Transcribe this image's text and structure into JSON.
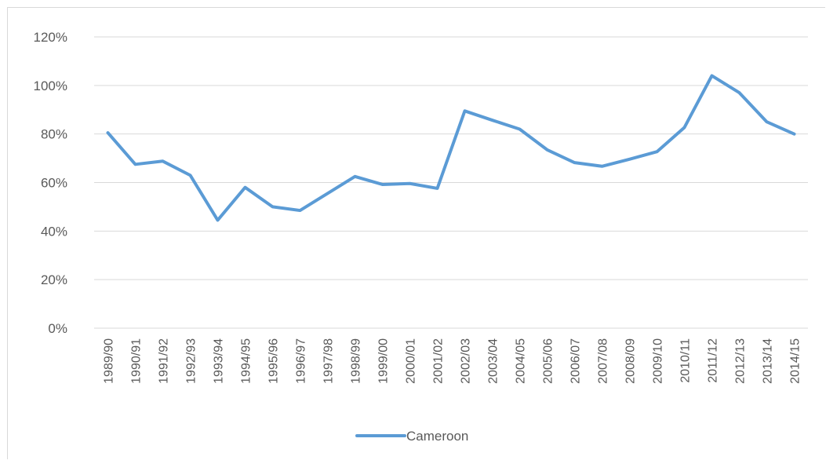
{
  "chart_data": {
    "type": "line",
    "title": "",
    "xlabel": "",
    "ylabel": "",
    "ylim": [
      0,
      120
    ],
    "y_tick_labels": [
      "0%",
      "20%",
      "40%",
      "60%",
      "80%",
      "100%",
      "120%"
    ],
    "y_tick_values": [
      0,
      20,
      40,
      60,
      80,
      100,
      120
    ],
    "grid": true,
    "legend_position": "bottom",
    "categories": [
      "1989/90",
      "1990/91",
      "1991/92",
      "1992/93",
      "1993/94",
      "1994/95",
      "1995/96",
      "1996/97",
      "1997/98",
      "1998/99",
      "1999/00",
      "2000/01",
      "2001/02",
      "2002/03",
      "2003/04",
      "2004/05",
      "2005/06",
      "2006/07",
      "2007/08",
      "2008/09",
      "2009/10",
      "2010/11",
      "2011/12",
      "2012/13",
      "2013/14",
      "2014/15"
    ],
    "series": [
      {
        "name": "Cameroon",
        "color": "#5b9bd5",
        "values": [
          80.5,
          67.5,
          68.8,
          63,
          44.5,
          58,
          50,
          48.5,
          55.5,
          62.5,
          59.2,
          59.6,
          57.6,
          89.5,
          85.7,
          82,
          73.5,
          68.2,
          66.7,
          69.6,
          72.7,
          82.7,
          104,
          97,
          85,
          80
        ]
      }
    ]
  }
}
